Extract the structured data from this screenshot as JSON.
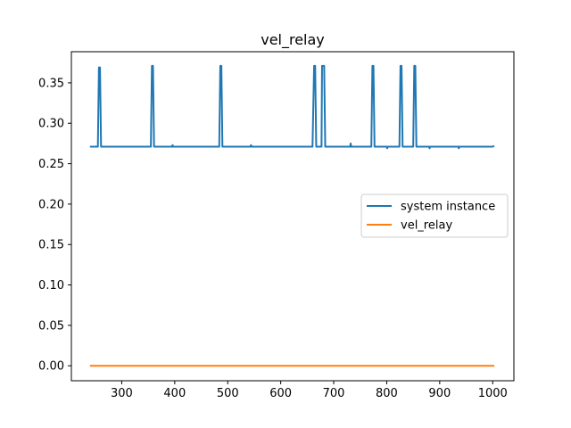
{
  "chart_data": {
    "type": "line",
    "title": "vel_relay",
    "xlabel": "",
    "ylabel": "",
    "xlim": [
      205,
      1040
    ],
    "ylim": [
      -0.0185,
      0.3885
    ],
    "xticks": [
      300,
      400,
      500,
      600,
      700,
      800,
      900,
      1000
    ],
    "yticks": [
      0.0,
      0.05,
      0.1,
      0.15,
      0.2,
      0.25,
      0.3,
      0.35
    ],
    "xtick_labels": [
      "300",
      "400",
      "500",
      "600",
      "700",
      "800",
      "900",
      "1000"
    ],
    "ytick_labels": [
      "0.00",
      "0.05",
      "0.10",
      "0.15",
      "0.20",
      "0.25",
      "0.30",
      "0.35"
    ],
    "grid": false,
    "legend_position": "center-right",
    "series": [
      {
        "name": "system instance",
        "color": "#1f77b4",
        "x": [
          240,
          255,
          257,
          259,
          261,
          300,
          340,
          355,
          357,
          359,
          361,
          395,
          396,
          397,
          440,
          484,
          486,
          488,
          490,
          543,
          544,
          545,
          600,
          660,
          663,
          665,
          667,
          677,
          678,
          680,
          682,
          684,
          731,
          732,
          733,
          760,
          771,
          773,
          775,
          777,
          800,
          801,
          802,
          824,
          826,
          828,
          830,
          850,
          852,
          854,
          856,
          880,
          881,
          882,
          935,
          936,
          937,
          1000,
          1003
        ],
        "y": [
          0.271,
          0.271,
          0.369,
          0.369,
          0.271,
          0.271,
          0.271,
          0.271,
          0.371,
          0.371,
          0.271,
          0.271,
          0.273,
          0.271,
          0.271,
          0.271,
          0.371,
          0.371,
          0.271,
          0.271,
          0.273,
          0.271,
          0.271,
          0.271,
          0.371,
          0.371,
          0.271,
          0.271,
          0.371,
          0.371,
          0.371,
          0.271,
          0.271,
          0.275,
          0.271,
          0.271,
          0.271,
          0.371,
          0.371,
          0.271,
          0.271,
          0.269,
          0.271,
          0.271,
          0.371,
          0.371,
          0.271,
          0.271,
          0.371,
          0.371,
          0.271,
          0.271,
          0.269,
          0.271,
          0.271,
          0.269,
          0.271,
          0.271,
          0.272
        ]
      },
      {
        "name": "vel_relay",
        "color": "#ff7f0e",
        "x": [
          240,
          1003
        ],
        "y": [
          0.0,
          0.0
        ]
      }
    ]
  }
}
